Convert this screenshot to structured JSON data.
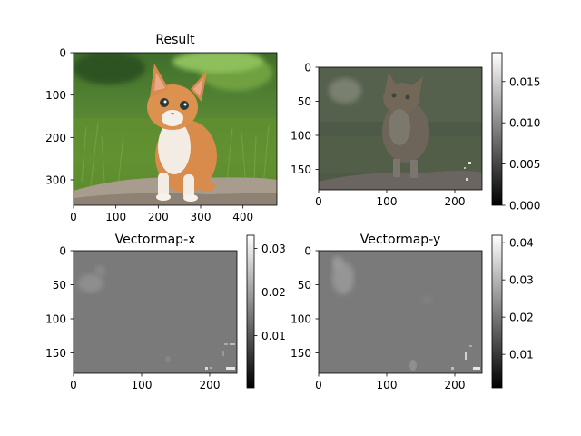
{
  "chart_data": [
    {
      "type": "image",
      "title": "Result",
      "xticks": [
        0,
        100,
        200,
        300,
        400
      ],
      "yticks": [
        0,
        100,
        200,
        300
      ],
      "xlim": [
        0,
        480
      ],
      "ylim": [
        360,
        0
      ],
      "colorbar": null
    },
    {
      "type": "heatmap",
      "title": "",
      "xticks": [
        0,
        100,
        200
      ],
      "yticks": [
        0,
        50,
        100,
        150
      ],
      "xlim": [
        0,
        240
      ],
      "ylim": [
        180,
        0
      ],
      "colorbar": {
        "ticks": [
          "0.000",
          "0.005",
          "0.010",
          "0.015"
        ],
        "range": [
          0.0,
          0.0185
        ]
      }
    },
    {
      "type": "heatmap",
      "title": "Vectormap-x",
      "xticks": [
        0,
        100,
        200
      ],
      "yticks": [
        0,
        50,
        100,
        150
      ],
      "xlim": [
        0,
        240
      ],
      "ylim": [
        180,
        0
      ],
      "colorbar": {
        "ticks": [
          "0.01",
          "0.02",
          "0.03"
        ],
        "range": [
          -0.002,
          0.033
        ]
      }
    },
    {
      "type": "heatmap",
      "title": "Vectormap-y",
      "xticks": [
        0,
        100,
        200
      ],
      "yticks": [
        0,
        50,
        100,
        150
      ],
      "xlim": [
        0,
        240
      ],
      "ylim": [
        180,
        0
      ],
      "colorbar": {
        "ticks": [
          "0.01",
          "0.02",
          "0.03",
          "0.04"
        ],
        "range": [
          0.001,
          0.042
        ]
      }
    }
  ],
  "icons": {
    "cat": "kitten-photo",
    "colors": {
      "grass": "#4f7a2e",
      "fur": "#d88b4a",
      "stone": "#a89c8e",
      "heat_mid": "#7a7a7a"
    }
  }
}
